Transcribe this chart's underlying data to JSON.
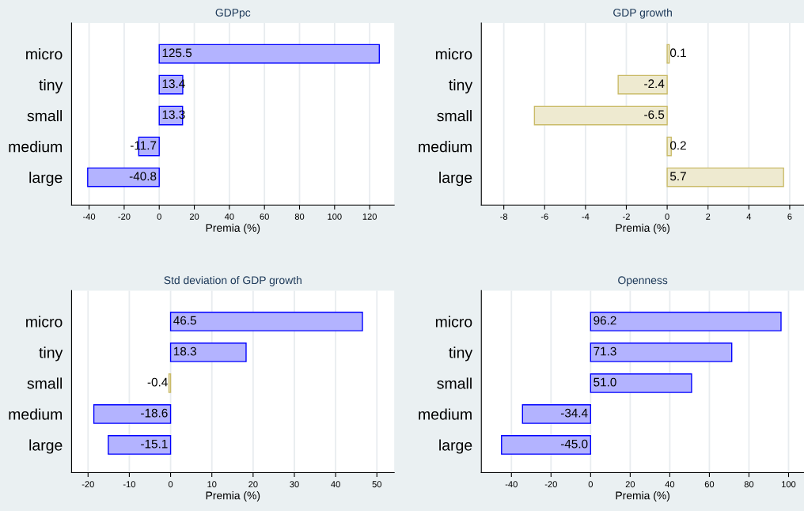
{
  "chart_data": [
    {
      "type": "bar",
      "orientation": "horizontal",
      "title": "GDPpc",
      "xlabel": "Premia (%)",
      "categories": [
        "micro",
        "tiny",
        "small",
        "medium",
        "large"
      ],
      "values": [
        125.5,
        13.4,
        13.3,
        -11.7,
        -40.8
      ],
      "colors": [
        "#b3b3ff",
        "#b3b3ff",
        "#b3b3ff",
        "#b3b3ff",
        "#b3b3ff"
      ],
      "xlim": [
        -50,
        134
      ],
      "xticks": [
        -40,
        -20,
        0,
        20,
        40,
        60,
        80,
        100,
        120
      ],
      "grid": "x",
      "value_labels": [
        "125.5",
        "13.4",
        "13.3",
        "-11.7",
        "-40.8"
      ]
    },
    {
      "type": "bar",
      "orientation": "horizontal",
      "title": "GDP growth",
      "xlabel": "Premia (%)",
      "categories": [
        "micro",
        "tiny",
        "small",
        "medium",
        "large"
      ],
      "values": [
        0.1,
        -2.4,
        -6.5,
        0.2,
        5.7
      ],
      "colors": [
        "#eeead0",
        "#eeead0",
        "#eeead0",
        "#eeead0",
        "#eeead0"
      ],
      "xlim": [
        -9.1,
        6.7
      ],
      "xticks": [
        -8,
        -6,
        -4,
        -2,
        0,
        2,
        4,
        6
      ],
      "grid": "x",
      "value_labels": [
        "0.1",
        "-2.4",
        "-6.5",
        "0.2",
        "5.7"
      ]
    },
    {
      "type": "bar",
      "orientation": "horizontal",
      "title": "Std deviation of GDP growth",
      "xlabel": "Premia (%)",
      "categories": [
        "micro",
        "tiny",
        "small",
        "medium",
        "large"
      ],
      "values": [
        46.5,
        18.3,
        -0.4,
        -18.6,
        -15.1
      ],
      "colors": [
        "#b3b3ff",
        "#b3b3ff",
        "#eeead0",
        "#b3b3ff",
        "#b3b3ff"
      ],
      "xlim": [
        -24,
        54.2
      ],
      "xticks": [
        -20,
        -10,
        0,
        10,
        20,
        30,
        40,
        50
      ],
      "grid": "x",
      "value_labels": [
        "46.5",
        "18.3",
        "-0.4",
        "-18.6",
        "-15.1"
      ]
    },
    {
      "type": "bar",
      "orientation": "horizontal",
      "title": "Openness",
      "xlabel": "Premia (%)",
      "categories": [
        "micro",
        "tiny",
        "small",
        "medium",
        "large"
      ],
      "values": [
        96.2,
        71.3,
        51.0,
        -34.4,
        -45.0
      ],
      "colors": [
        "#b3b3ff",
        "#b3b3ff",
        "#b3b3ff",
        "#b3b3ff",
        "#b3b3ff"
      ],
      "xlim": [
        -55.2,
        107.8
      ],
      "xticks": [
        -40,
        -20,
        0,
        20,
        40,
        60,
        80,
        100
      ],
      "grid": "x",
      "value_labels": [
        "96.2",
        "71.3",
        "51.0",
        "-34.4",
        "-45.0"
      ]
    }
  ]
}
